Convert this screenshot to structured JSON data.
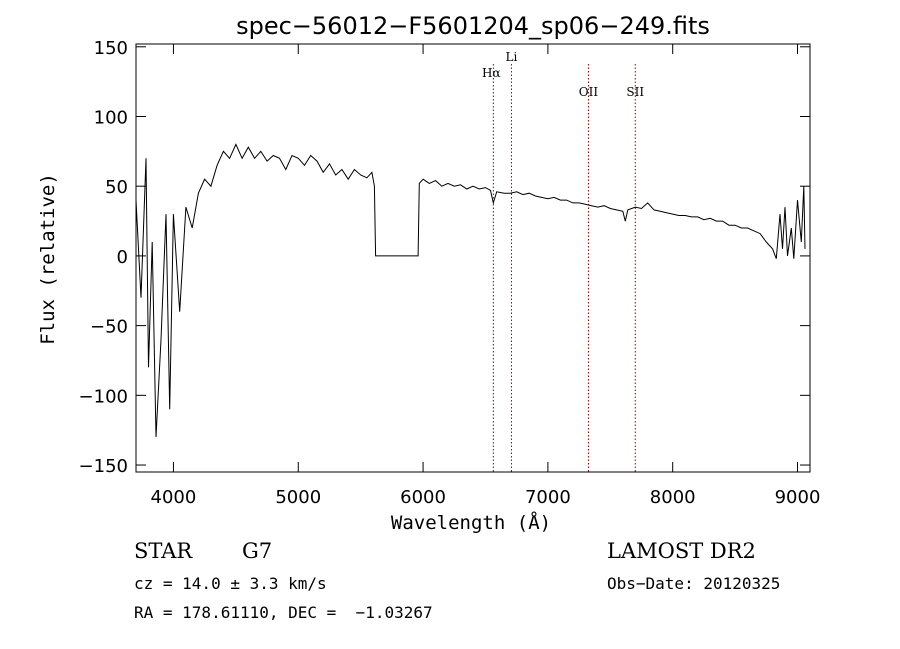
{
  "chart_data": {
    "type": "line",
    "title": "spec−56012−F5601204_sp06−249.fits",
    "xlabel": "Wavelength (Å)",
    "ylabel": "Flux (relative)",
    "xlim": [
      3700,
      9100
    ],
    "ylim": [
      -155,
      152
    ],
    "xticks": [
      4000,
      5000,
      6000,
      7000,
      8000,
      9000
    ],
    "yticks": [
      150,
      100,
      50,
      0,
      -50,
      -100,
      -150
    ],
    "ytick_labels": [
      "150",
      "100",
      "50",
      "0",
      "−50",
      "−100",
      "−150"
    ],
    "grid": false,
    "legend": "none",
    "line_color": "#000000",
    "marker_color": "#a00000",
    "line_markers": [
      {
        "label": "Hα",
        "x": 6563
      },
      {
        "label": "Li",
        "x": 6708
      },
      {
        "label": "OII",
        "x": 7325
      },
      {
        "label": "SII",
        "x": 7700
      }
    ],
    "series": [
      {
        "x": [
          3700,
          3740,
          3780,
          3800,
          3830,
          3860,
          3900,
          3940,
          3970,
          4000,
          4050,
          4100,
          4150,
          4200,
          4250,
          4300,
          4350,
          4400,
          4450,
          4500,
          4550,
          4600,
          4650,
          4700,
          4750,
          4800,
          4850,
          4900,
          4950,
          5000,
          5050,
          5100,
          5150,
          5200,
          5250,
          5300,
          5350,
          5400,
          5450,
          5500,
          5550,
          5590,
          5610,
          5620,
          5960,
          5970,
          6000,
          6050,
          6100,
          6150,
          6200,
          6250,
          6300,
          6350,
          6400,
          6450,
          6500,
          6540,
          6563,
          6590,
          6650,
          6700,
          6750,
          6800,
          6850,
          6900,
          6950,
          7000,
          7050,
          7100,
          7150,
          7200,
          7250,
          7300,
          7350,
          7400,
          7450,
          7500,
          7550,
          7600,
          7620,
          7640,
          7700,
          7750,
          7800,
          7850,
          7900,
          7950,
          8000,
          8050,
          8100,
          8150,
          8200,
          8250,
          8300,
          8350,
          8400,
          8450,
          8500,
          8550,
          8600,
          8650,
          8700,
          8750,
          8800,
          8830,
          8860,
          8880,
          8900,
          8920,
          8950,
          8970,
          9000,
          9030,
          9050,
          9060
        ],
        "y": [
          40,
          -30,
          70,
          -80,
          10,
          -130,
          -60,
          30,
          -110,
          30,
          -40,
          35,
          20,
          45,
          55,
          50,
          65,
          75,
          70,
          80,
          70,
          78,
          70,
          75,
          68,
          72,
          70,
          62,
          72,
          70,
          65,
          72,
          68,
          60,
          66,
          58,
          62,
          55,
          62,
          58,
          56,
          60,
          50,
          0,
          0,
          52,
          55,
          52,
          54,
          50,
          52,
          50,
          51,
          48,
          50,
          48,
          49,
          47,
          38,
          46,
          45,
          45,
          46,
          44,
          45,
          43,
          42,
          41,
          42,
          40,
          40,
          38,
          38,
          37,
          36,
          35,
          36,
          34,
          33,
          32,
          25,
          33,
          35,
          34,
          38,
          33,
          32,
          31,
          30,
          29,
          29,
          28,
          28,
          26,
          27,
          25,
          25,
          22,
          22,
          20,
          20,
          18,
          16,
          10,
          5,
          -2,
          30,
          5,
          35,
          0,
          20,
          -2,
          40,
          10,
          50,
          5
        ]
      }
    ]
  },
  "info": {
    "object_class": "STAR",
    "subclass": "G7",
    "survey": "LAMOST DR2",
    "redshift": "cz = 14.0 ± 3.3 km/s",
    "obs_date": "Obs−Date: 20120325",
    "coords": "RA = 178.61110, DEC =  −1.03267"
  }
}
